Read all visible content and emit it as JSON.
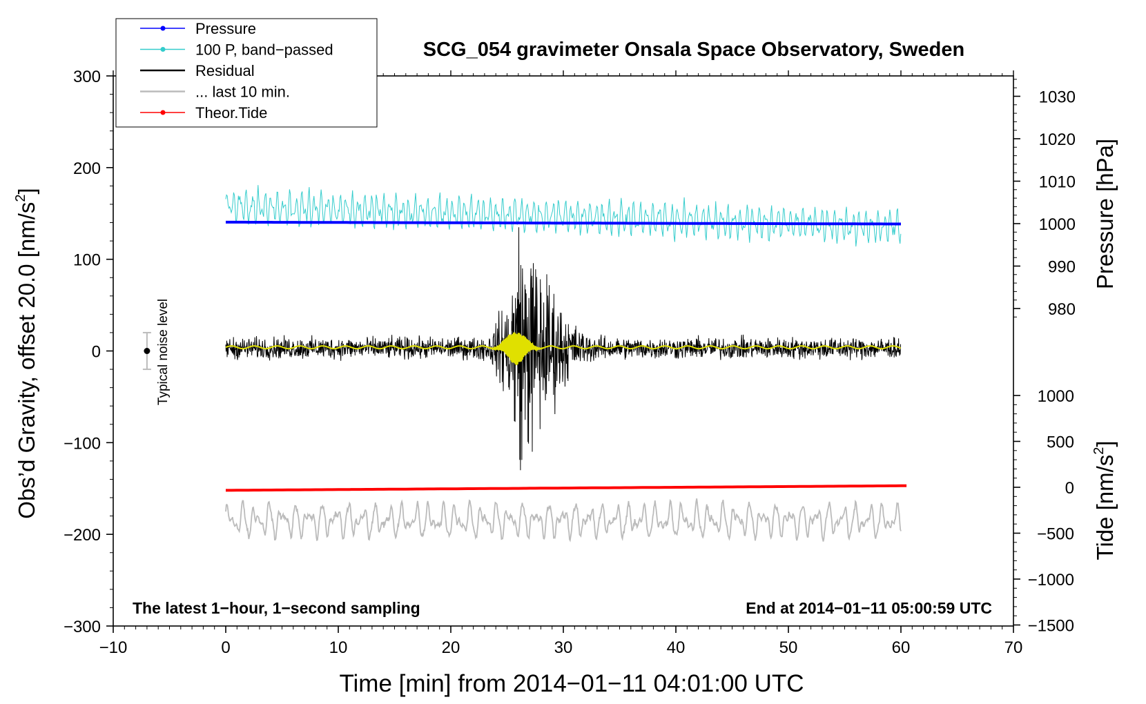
{
  "chart_data": {
    "type": "line",
    "title": "SCG_054 gravimeter Onsala Space Observatory, Sweden",
    "xlabel": "Time [min] from 2014−01−11 04:01:00 UTC",
    "ylabel": "Obs’d Gravity, offset 20.0 [nm/s",
    "ylabel_sup": "2",
    "ylabel_close": "]",
    "y2label": "Pressure [hPa]",
    "y3label": "Tide [nm/s",
    "y3label_sup": "2",
    "y3label_close": "]",
    "xlim": [
      -10,
      70
    ],
    "ylim": [
      -300,
      300
    ],
    "x_ticks": [
      -10,
      0,
      10,
      20,
      30,
      40,
      50,
      60,
      70
    ],
    "x_tick_labels": [
      "−10",
      "0",
      "10",
      "20",
      "30",
      "40",
      "50",
      "60",
      "70"
    ],
    "y_ticks": [
      -300,
      -200,
      -100,
      0,
      100,
      200,
      300
    ],
    "y_tick_labels": [
      "−300",
      "−200",
      "−100",
      "0",
      "100",
      "200",
      "300"
    ],
    "pressure_ticks": [
      980,
      990,
      1000,
      1010,
      1020,
      1030
    ],
    "pressure_tick_labels": [
      "980",
      "990",
      "1000",
      "1010",
      "1020",
      "1030"
    ],
    "tide_ticks": [
      -1500,
      -1000,
      -500,
      0,
      500,
      1000
    ],
    "tide_tick_labels": [
      "−1500",
      "−1000",
      "−500",
      "0",
      "500",
      "1000"
    ],
    "legend": [
      {
        "label": "Pressure",
        "color": "#0000ff",
        "marker": true
      },
      {
        "label": "100 P, band−passed",
        "color": "#33cccc",
        "marker": true
      },
      {
        "label": "Residual",
        "color": "#000000",
        "marker": false
      },
      {
        "label": "... last 10 min.",
        "color": "#bbbbbb",
        "marker": false
      },
      {
        "label": "Theor.Tide",
        "color": "#ff0000",
        "marker": true
      }
    ],
    "legend_position": "top-left",
    "annotations": {
      "noise": "Typical noise level",
      "bottom_left": "The latest 1−hour, 1−second sampling",
      "bottom_right": "End at 2014−01−11 05:00:59 UTC"
    },
    "series": [
      {
        "name": "Pressure",
        "color": "#0000ff",
        "x_range": [
          0,
          60
        ],
        "start": 140.5,
        "end": 138.5
      },
      {
        "name": "100 P, band−passed",
        "color": "#33cccc",
        "x_range": [
          0,
          60
        ],
        "center_start": 158,
        "center_end": 135,
        "amplitude": 22
      },
      {
        "name": "Residual",
        "color": "#000000",
        "x_range": [
          0,
          60
        ],
        "baseline": 3,
        "noise_amplitude": 14,
        "event_center": 26.5,
        "event_peak": 140
      },
      {
        "name": "Residual smoothed",
        "color": "#e0e000",
        "x_range": [
          0,
          60
        ],
        "baseline": 4
      },
      {
        "name": "... last 10 min.",
        "color": "#bbbbbb",
        "x_range": [
          0,
          60
        ],
        "baseline": -185,
        "amplitude": 18
      },
      {
        "name": "Theor.Tide",
        "color": "#ff0000",
        "x_range": [
          0,
          60.5
        ],
        "start": -152,
        "end": -147
      }
    ],
    "noise_bar": {
      "x": -7,
      "y": 0,
      "low": -20,
      "high": 20
    }
  }
}
